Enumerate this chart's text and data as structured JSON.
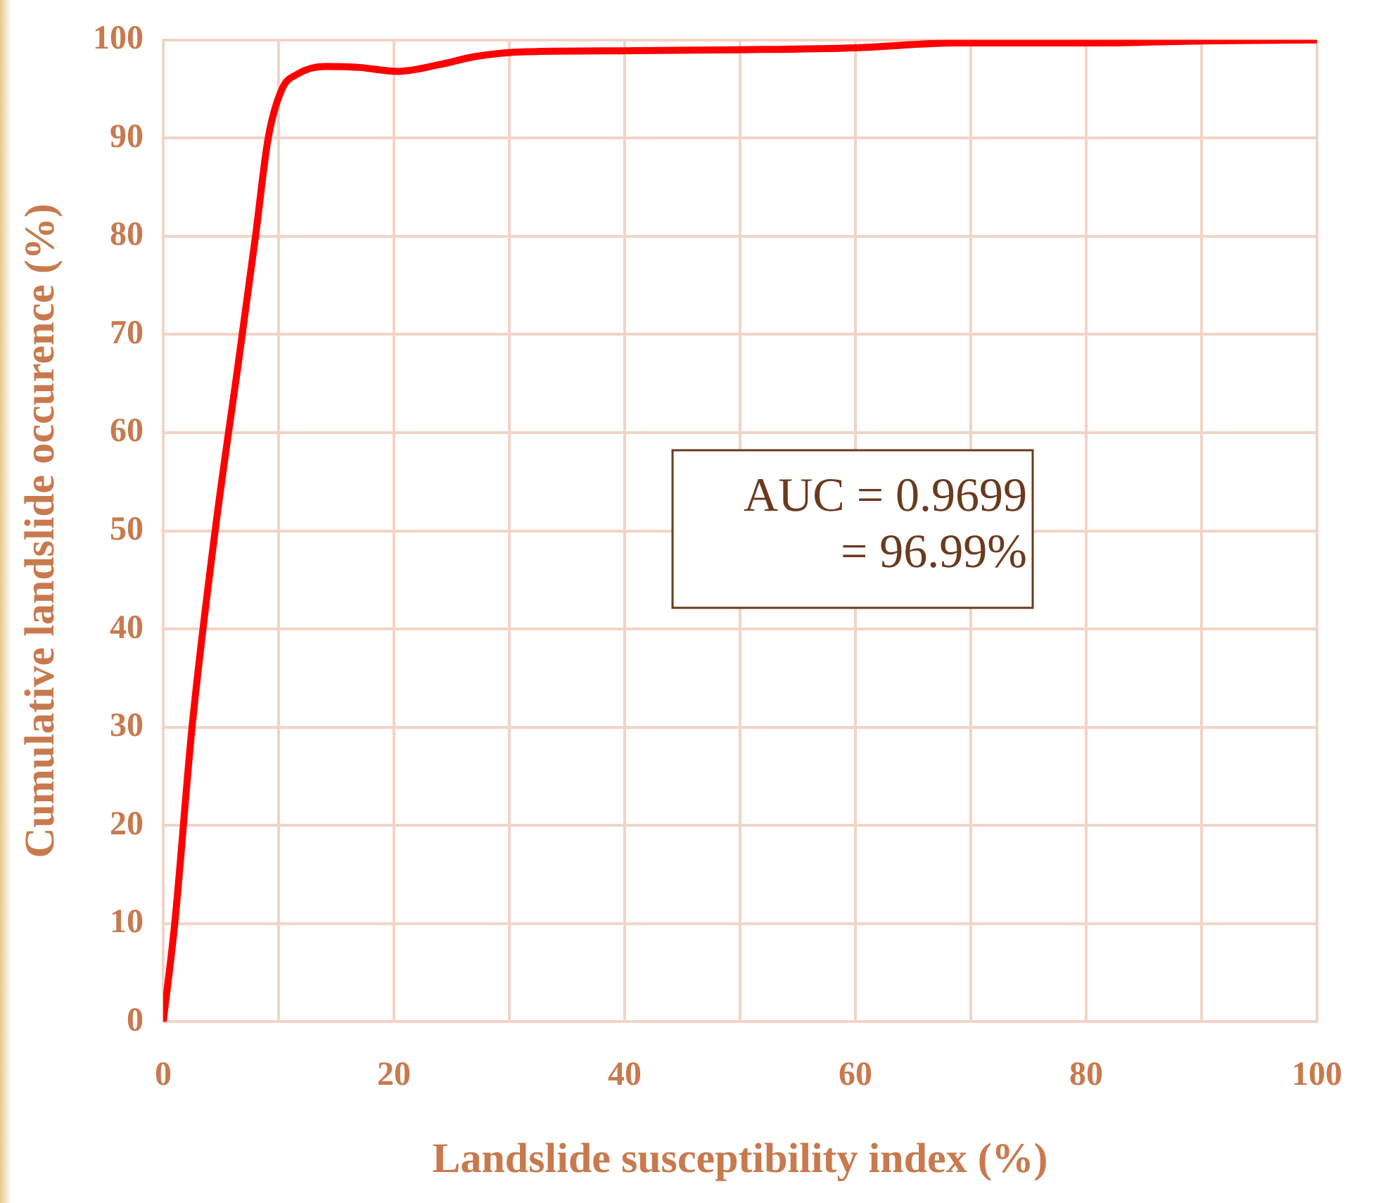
{
  "chart_data": {
    "type": "line",
    "xlabel": "Landslide susceptibility index (%)",
    "ylabel": "Cumulative landslide occurence (%)",
    "annotations": [
      "AUC = 0.9699\n= 96.99%"
    ],
    "xlim": [
      0,
      100
    ],
    "ylim": [
      0,
      100
    ],
    "xticks": [
      0,
      {
        "value": 10,
        "label": null
      },
      20,
      {
        "value": 30,
        "label": null
      },
      40,
      {
        "value": 50,
        "label": null
      },
      60,
      {
        "value": 70,
        "label": null
      },
      80,
      {
        "value": 90,
        "label": null
      },
      100
    ],
    "yticks": [
      0,
      10,
      20,
      30,
      40,
      50,
      60,
      70,
      80,
      90,
      100
    ],
    "grid": true,
    "marker": "none",
    "line_style": "solid",
    "series": [
      {
        "color": "#ff0000",
        "x": [
          0,
          1,
          2.5,
          4.5,
          6.5,
          8,
          9.1,
          10.3,
          11.6,
          14,
          17,
          20.3,
          24,
          27,
          31.5,
          40,
          50,
          60,
          68.8,
          81,
          90,
          100
        ],
        "values": [
          0,
          10,
          30,
          50,
          67,
          80,
          90,
          95,
          96.5,
          97.3,
          97.2,
          96.8,
          97.5,
          98.3,
          98.8,
          98.9,
          99,
          99.2,
          99.7,
          99.7,
          99.9,
          100
        ]
      }
    ]
  }
}
